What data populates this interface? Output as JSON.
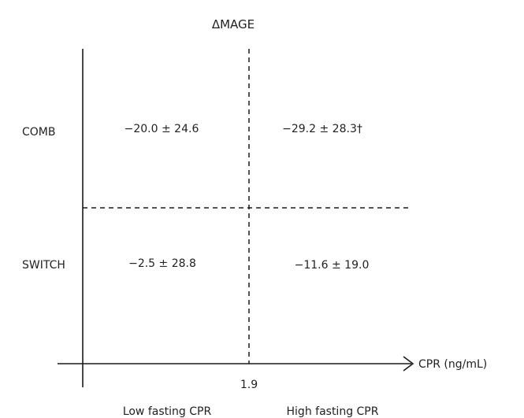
{
  "title": "ΔMAGE",
  "row_labels": {
    "comb": "COMB",
    "switch": "SWITCH"
  },
  "cells": {
    "comb_low": "−20.0 ± 24.6",
    "comb_high": "−29.2 ± 28.3†",
    "switch_low": "−2.5 ± 28.8",
    "switch_high": "−11.6 ± 19.0"
  },
  "axis": {
    "label": "CPR (ng/mL)",
    "threshold": "1.9"
  },
  "group_labels": {
    "low": "Low fasting CPR",
    "high": "High fasting CPR"
  },
  "colors": {
    "lines": "#1a1a1a",
    "text": "#222222"
  }
}
